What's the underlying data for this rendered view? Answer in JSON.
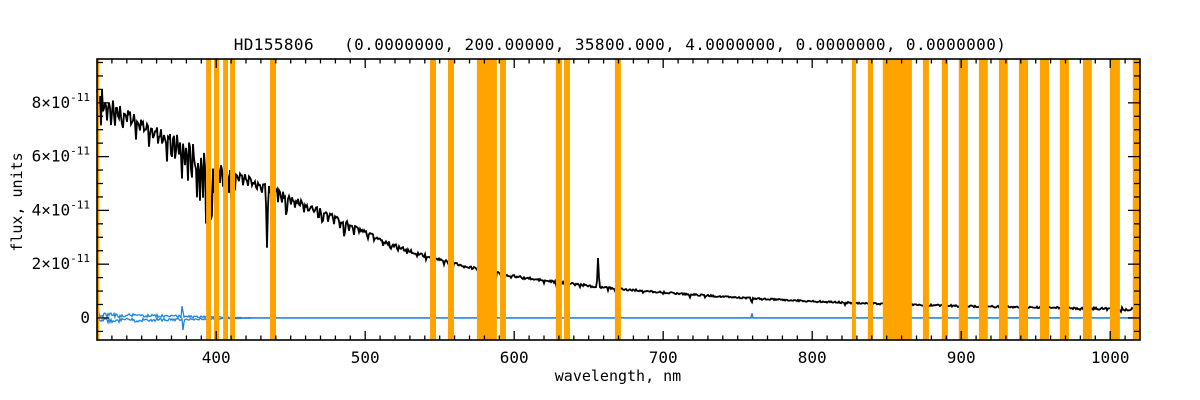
{
  "colors": {
    "background": "#FFFFFF",
    "frame": "#000000",
    "spectrum": "#000000",
    "baseline": "#1E86E0",
    "mask_band": "#FFA300"
  },
  "chart_data": {
    "type": "line",
    "title": "HD155806   (0.0000000, 200.00000, 35800.000, 4.0000000, 0.0000000, 0.0000000)",
    "star_name": "HD155806",
    "parameters_shown": [
      "0.0000000",
      "200.00000",
      "35800.000",
      "4.0000000",
      "0.0000000",
      "0.0000000"
    ],
    "xlabel": "wavelength, nm",
    "ylabel": "flux, units",
    "xlim": [
      320,
      1020
    ],
    "ylim_e11": [
      -0.82,
      9.63
    ],
    "x_major_ticks": [
      400,
      500,
      600,
      700,
      800,
      900,
      1000
    ],
    "x_tick_labels": [
      "400",
      "500",
      "600",
      "700",
      "800",
      "900",
      "1000"
    ],
    "x_minor_step": 10,
    "y_major_ticks_e11": [
      0,
      2,
      4,
      6,
      8
    ],
    "y_tick_labels": [
      {
        "value": 0,
        "base": "0",
        "exp": ""
      },
      {
        "value": 2,
        "base": "2×10",
        "exp": "-11"
      },
      {
        "value": 4,
        "base": "4×10",
        "exp": "-11"
      },
      {
        "value": 6,
        "base": "6×10",
        "exp": "-11"
      },
      {
        "value": 8,
        "base": "8×10",
        "exp": "-11"
      }
    ],
    "y_minor_step_e11": 0.5,
    "grid": false,
    "legend": false,
    "masked_bands_nm": [
      [
        320.0,
        321.5
      ],
      [
        393.2,
        396.5
      ],
      [
        398.5,
        401.9
      ],
      [
        404.6,
        407.9
      ],
      [
        409.3,
        412.6
      ],
      [
        436.1,
        440.1
      ],
      [
        543.5,
        547.5
      ],
      [
        555.6,
        559.6
      ],
      [
        575.0,
        588.4
      ],
      [
        590.4,
        594.5
      ],
      [
        628.0,
        632.0
      ],
      [
        633.4,
        637.4
      ],
      [
        667.6,
        671.6
      ],
      [
        826.7,
        829.3
      ],
      [
        837.4,
        840.8
      ],
      [
        847.4,
        866.9
      ],
      [
        874.3,
        878.3
      ],
      [
        887.0,
        891.1
      ],
      [
        898.4,
        904.5
      ],
      [
        911.9,
        917.9
      ],
      [
        925.3,
        931.3
      ],
      [
        938.7,
        944.8
      ],
      [
        952.8,
        958.9
      ],
      [
        966.2,
        972.3
      ],
      [
        981.7,
        987.7
      ],
      [
        999.8,
        1006.5
      ],
      [
        1015.2,
        1020.0
      ]
    ],
    "spectrum": {
      "name": "stellar-spectrum-flux-e11",
      "envelope": [
        [
          320,
          8.15
        ],
        [
          323,
          8.3
        ],
        [
          326,
          8.05
        ],
        [
          330,
          7.9
        ],
        [
          335,
          7.75
        ],
        [
          340,
          7.6
        ],
        [
          345,
          7.45
        ],
        [
          350,
          7.3
        ],
        [
          355,
          7.15
        ],
        [
          360,
          7.0
        ],
        [
          365,
          6.85
        ],
        [
          370,
          6.7
        ],
        [
          375,
          6.55
        ],
        [
          380,
          6.42
        ],
        [
          385,
          6.28
        ],
        [
          390,
          6.12
        ],
        [
          394,
          5.95
        ],
        [
          398,
          5.75
        ],
        [
          402,
          5.6
        ],
        [
          406,
          5.5
        ],
        [
          410,
          5.42
        ],
        [
          415,
          5.32
        ],
        [
          420,
          5.22
        ],
        [
          425,
          5.12
        ],
        [
          430,
          5.0
        ],
        [
          435,
          4.88
        ],
        [
          440,
          4.72
        ],
        [
          445,
          4.58
        ],
        [
          450,
          4.45
        ],
        [
          455,
          4.35
        ],
        [
          460,
          4.22
        ],
        [
          465,
          4.1
        ],
        [
          470,
          3.98
        ],
        [
          475,
          3.85
        ],
        [
          480,
          3.72
        ],
        [
          485,
          3.6
        ],
        [
          490,
          3.48
        ],
        [
          495,
          3.35
        ],
        [
          500,
          3.16
        ],
        [
          505,
          3.05
        ],
        [
          510,
          2.92
        ],
        [
          515,
          2.8
        ],
        [
          520,
          2.68
        ],
        [
          525,
          2.58
        ],
        [
          530,
          2.48
        ],
        [
          535,
          2.4
        ],
        [
          540,
          2.32
        ],
        [
          545,
          2.24
        ],
        [
          550,
          2.16
        ],
        [
          555,
          2.09
        ],
        [
          560,
          2.02
        ],
        [
          565,
          1.95
        ],
        [
          570,
          1.89
        ],
        [
          575,
          1.83
        ],
        [
          580,
          1.77
        ],
        [
          585,
          1.71
        ],
        [
          590,
          1.66
        ],
        [
          595,
          1.6
        ],
        [
          600,
          1.55
        ],
        [
          610,
          1.47
        ],
        [
          620,
          1.39
        ],
        [
          630,
          1.32
        ],
        [
          640,
          1.26
        ],
        [
          650,
          1.2
        ],
        [
          660,
          1.14
        ],
        [
          670,
          1.09
        ],
        [
          680,
          1.04
        ],
        [
          690,
          0.99
        ],
        [
          700,
          0.95
        ],
        [
          710,
          0.91
        ],
        [
          720,
          0.87
        ],
        [
          730,
          0.83
        ],
        [
          740,
          0.79
        ],
        [
          750,
          0.76
        ],
        [
          760,
          0.73
        ],
        [
          770,
          0.7
        ],
        [
          780,
          0.67
        ],
        [
          790,
          0.645
        ],
        [
          800,
          0.62
        ],
        [
          815,
          0.585
        ],
        [
          830,
          0.555
        ],
        [
          845,
          0.53
        ],
        [
          860,
          0.505
        ],
        [
          875,
          0.48
        ],
        [
          890,
          0.46
        ],
        [
          900,
          0.445
        ],
        [
          915,
          0.425
        ],
        [
          930,
          0.41
        ],
        [
          945,
          0.395
        ],
        [
          960,
          0.38
        ],
        [
          975,
          0.365
        ],
        [
          990,
          0.35
        ],
        [
          1000,
          0.34
        ],
        [
          1010,
          0.33
        ],
        [
          1020,
          0.32
        ]
      ],
      "features": [
        [
          322.5,
          -1.0,
          0.8
        ],
        [
          324.5,
          -0.7,
          0.6
        ],
        [
          327,
          -0.9,
          0.7
        ],
        [
          329.5,
          -0.6,
          0.6
        ],
        [
          332,
          -0.8,
          0.7
        ],
        [
          334.5,
          -0.5,
          0.6
        ],
        [
          337,
          -0.9,
          0.8
        ],
        [
          340,
          -0.6,
          0.6
        ],
        [
          343,
          -0.7,
          0.7
        ],
        [
          346,
          -0.9,
          0.8
        ],
        [
          349,
          -0.5,
          0.6
        ],
        [
          352,
          -0.6,
          0.6
        ],
        [
          355,
          -0.8,
          0.8
        ],
        [
          358,
          -0.6,
          0.6
        ],
        [
          361,
          -0.5,
          0.6
        ],
        [
          364,
          -0.6,
          0.7
        ],
        [
          367,
          -0.8,
          0.8
        ],
        [
          370,
          -1.0,
          0.8
        ],
        [
          372.5,
          -0.8,
          0.7
        ],
        [
          375,
          -0.7,
          0.7
        ],
        [
          377,
          -1.1,
          0.8
        ],
        [
          379,
          -1.0,
          0.8
        ],
        [
          381,
          -1.3,
          0.8
        ],
        [
          383.5,
          -1.6,
          0.9
        ],
        [
          385.5,
          -1.2,
          0.8
        ],
        [
          387,
          -1.9,
          0.9
        ],
        [
          389,
          -2.1,
          0.9
        ],
        [
          391,
          -1.7,
          0.9
        ],
        [
          393.4,
          -3.3,
          1.0
        ],
        [
          395.2,
          -1.6,
          0.8
        ],
        [
          396.8,
          -2.9,
          1.0
        ],
        [
          398.6,
          -1.3,
          0.8
        ],
        [
          400.5,
          -0.9,
          0.7
        ],
        [
          402.5,
          -0.7,
          0.7
        ],
        [
          404.5,
          -0.6,
          0.7
        ],
        [
          406.5,
          -1.1,
          0.8
        ],
        [
          408.5,
          -0.8,
          0.7
        ],
        [
          410.2,
          -1.5,
          0.9
        ],
        [
          412.5,
          -0.6,
          0.7
        ],
        [
          415,
          -0.45,
          0.6
        ],
        [
          418,
          -0.35,
          0.6
        ],
        [
          421,
          -0.4,
          0.6
        ],
        [
          424,
          -0.35,
          0.6
        ],
        [
          427,
          -0.45,
          0.6
        ],
        [
          430.5,
          -0.45,
          0.6
        ],
        [
          434.1,
          -2.2,
          1.0
        ],
        [
          436.5,
          -0.45,
          0.6
        ],
        [
          438.8,
          -1.05,
          0.8
        ],
        [
          441.5,
          -0.35,
          0.6
        ],
        [
          444,
          -0.3,
          0.6
        ],
        [
          447.1,
          -1.1,
          0.8
        ],
        [
          450,
          -0.35,
          0.6
        ],
        [
          453,
          -0.4,
          0.6
        ],
        [
          456,
          -0.3,
          0.6
        ],
        [
          459,
          -0.3,
          0.6
        ],
        [
          462,
          -0.35,
          0.6
        ],
        [
          465.5,
          -0.3,
          0.6
        ],
        [
          468.6,
          -0.6,
          0.7
        ],
        [
          471.3,
          -0.5,
          0.7
        ],
        [
          475,
          -0.3,
          0.6
        ],
        [
          479,
          -0.25,
          0.6
        ],
        [
          483,
          -0.3,
          0.6
        ],
        [
          486.1,
          -0.8,
          0.8
        ],
        [
          489,
          -0.3,
          0.6
        ],
        [
          492.2,
          -0.45,
          0.7
        ],
        [
          496,
          -0.25,
          0.6
        ],
        [
          501.6,
          -0.35,
          0.6
        ],
        [
          506,
          -0.2,
          0.5
        ],
        [
          512,
          -0.22,
          0.5
        ],
        [
          517,
          -0.28,
          0.6
        ],
        [
          522,
          -0.18,
          0.5
        ],
        [
          528,
          -0.2,
          0.5
        ],
        [
          535,
          -0.22,
          0.5
        ],
        [
          541,
          -0.28,
          0.6
        ],
        [
          547,
          -0.18,
          0.5
        ],
        [
          553,
          -0.18,
          0.5
        ],
        [
          559,
          -0.22,
          0.5
        ],
        [
          566,
          -0.18,
          0.5
        ],
        [
          572,
          -0.16,
          0.5
        ],
        [
          578,
          -0.2,
          0.5
        ],
        [
          584,
          -0.26,
          0.6
        ],
        [
          587.6,
          -0.3,
          0.6
        ],
        [
          592,
          -0.16,
          0.5
        ],
        [
          598,
          -0.15,
          0.5
        ],
        [
          606,
          -0.12,
          0.5
        ],
        [
          613,
          -0.1,
          0.5
        ],
        [
          620,
          -0.11,
          0.5
        ],
        [
          628,
          -0.1,
          0.5
        ],
        [
          636,
          -0.1,
          0.5
        ],
        [
          644,
          -0.09,
          0.5
        ],
        [
          652,
          -0.08,
          0.5
        ],
        [
          656.3,
          1.15,
          0.9
        ],
        [
          663,
          -0.12,
          0.6
        ],
        [
          667.8,
          -0.16,
          0.6
        ],
        [
          676,
          -0.08,
          0.5
        ],
        [
          686.7,
          -0.14,
          0.7
        ],
        [
          700,
          -0.08,
          0.5
        ],
        [
          718,
          -0.12,
          0.8
        ],
        [
          728,
          -0.08,
          0.5
        ],
        [
          759.4,
          -0.18,
          0.9
        ],
        [
          766.5,
          -0.1,
          0.6
        ],
        [
          822,
          -0.08,
          0.7
        ],
        [
          840,
          -0.06,
          0.5
        ],
        [
          862,
          -0.06,
          0.5
        ],
        [
          898,
          -0.06,
          0.5
        ],
        [
          935,
          -0.07,
          0.6
        ],
        [
          980,
          -0.06,
          0.5
        ],
        [
          1007,
          -0.09,
          0.7
        ],
        [
          1013,
          -0.1,
          0.7
        ]
      ],
      "noise_profile": [
        [
          320,
          0.5
        ],
        [
          326,
          0.45
        ],
        [
          330,
          0.28
        ],
        [
          345,
          0.2
        ],
        [
          360,
          0.22
        ],
        [
          372,
          0.26
        ],
        [
          382,
          0.3
        ],
        [
          392,
          0.3
        ],
        [
          400,
          0.14
        ],
        [
          430,
          0.12
        ],
        [
          460,
          0.1
        ],
        [
          500,
          0.08
        ],
        [
          540,
          0.06
        ],
        [
          600,
          0.045
        ],
        [
          650,
          0.04
        ],
        [
          700,
          0.03
        ],
        [
          800,
          0.03
        ],
        [
          900,
          0.035
        ],
        [
          980,
          0.04
        ],
        [
          1010,
          0.06
        ],
        [
          1020,
          0.06
        ]
      ]
    },
    "baseline": {
      "name": "sky-baseline-flux-e11",
      "level_e11": 0,
      "strand_separation_e11": 0.22,
      "strand_merge_nm": 430,
      "noise_amp_e11": 0.09,
      "spikes_up": [
        [
          377.3,
          0.6,
          0.6
        ],
        [
          759.5,
          0.2,
          0.7
        ]
      ],
      "spikes_down": [
        [
          377.9,
          -0.55,
          0.6
        ]
      ]
    }
  }
}
